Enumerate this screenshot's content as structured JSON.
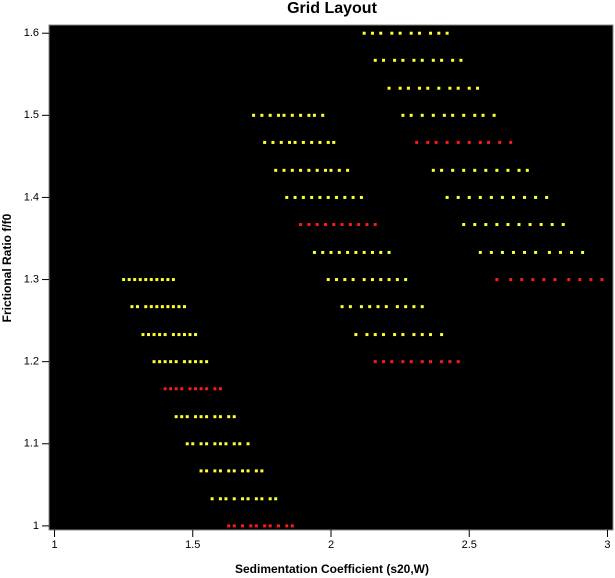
{
  "chart_data": {
    "type": "scatter",
    "title": "Grid Layout",
    "x_label": "Sedimentation Coefficient (s20,W)",
    "y_label": "Frictional Ratio f/f0",
    "xlim": [
      0.98,
      3.02
    ],
    "ylim": [
      0.995,
      1.61
    ],
    "xticks": [
      1,
      1.5,
      2,
      2.5,
      3
    ],
    "yticks": [
      1,
      1.1,
      1.2,
      1.3,
      1.4,
      1.5,
      1.6
    ],
    "background": "#000000",
    "series": [
      {
        "color": "#ff1a1a",
        "y": 1.0,
        "x": [
          1.63,
          1.65,
          1.68,
          1.71,
          1.73,
          1.76,
          1.78,
          1.81,
          1.84,
          1.86
        ]
      },
      {
        "color": "#ffff33",
        "y": 1.033,
        "x": [
          1.57,
          1.6,
          1.62,
          1.65,
          1.68,
          1.7,
          1.73,
          1.75,
          1.78,
          1.8
        ]
      },
      {
        "color": "#ffff33",
        "y": 1.067,
        "x": [
          1.53,
          1.55,
          1.58,
          1.6,
          1.63,
          1.65,
          1.68,
          1.7,
          1.73,
          1.75
        ]
      },
      {
        "color": "#ffff33",
        "y": 1.1,
        "x": [
          1.48,
          1.5,
          1.53,
          1.55,
          1.58,
          1.6,
          1.62,
          1.65,
          1.67,
          1.7
        ]
      },
      {
        "color": "#ffff33",
        "y": 1.133,
        "x": [
          1.44,
          1.46,
          1.48,
          1.51,
          1.53,
          1.55,
          1.58,
          1.6,
          1.63,
          1.65
        ]
      },
      {
        "color": "#ff1a1a",
        "y": 1.167,
        "x": [
          1.4,
          1.42,
          1.44,
          1.46,
          1.49,
          1.51,
          1.53,
          1.55,
          1.58,
          1.6
        ]
      },
      {
        "color": "#ffff33",
        "y": 1.2,
        "x": [
          1.36,
          1.38,
          1.4,
          1.42,
          1.44,
          1.47,
          1.49,
          1.51,
          1.53,
          1.55
        ]
      },
      {
        "color": "#ffff33",
        "y": 1.233,
        "x": [
          1.32,
          1.34,
          1.36,
          1.38,
          1.4,
          1.43,
          1.45,
          1.47,
          1.49,
          1.51
        ]
      },
      {
        "color": "#ffff33",
        "y": 1.267,
        "x": [
          1.28,
          1.3,
          1.33,
          1.35,
          1.37,
          1.39,
          1.41,
          1.43,
          1.45,
          1.47
        ]
      },
      {
        "color": "#ffff33",
        "y": 1.3,
        "x": [
          1.25,
          1.27,
          1.29,
          1.31,
          1.33,
          1.35,
          1.37,
          1.39,
          1.41,
          1.43
        ]
      },
      {
        "color": "#ff1a1a",
        "y": 1.2,
        "x": [
          2.16,
          2.19,
          2.22,
          2.26,
          2.29,
          2.33,
          2.36,
          2.4,
          2.43,
          2.46
        ]
      },
      {
        "color": "#ffff33",
        "y": 1.233,
        "x": [
          2.09,
          2.13,
          2.16,
          2.19,
          2.23,
          2.26,
          2.3,
          2.33,
          2.36,
          2.4
        ]
      },
      {
        "color": "#ffff33",
        "y": 1.267,
        "x": [
          2.04,
          2.07,
          2.11,
          2.14,
          2.17,
          2.2,
          2.24,
          2.27,
          2.3,
          2.33
        ]
      },
      {
        "color": "#ffff33",
        "y": 1.3,
        "x": [
          1.99,
          2.02,
          2.05,
          2.08,
          2.12,
          2.15,
          2.18,
          2.21,
          2.24,
          2.27
        ]
      },
      {
        "color": "#ffff33",
        "y": 1.333,
        "x": [
          1.94,
          1.97,
          2.0,
          2.03,
          2.06,
          2.09,
          2.12,
          2.15,
          2.18,
          2.21
        ]
      },
      {
        "color": "#ff1a1a",
        "y": 1.367,
        "x": [
          1.89,
          1.92,
          1.95,
          1.98,
          2.01,
          2.04,
          2.07,
          2.1,
          2.13,
          2.16
        ]
      },
      {
        "color": "#ffff33",
        "y": 1.4,
        "x": [
          1.84,
          1.87,
          1.9,
          1.93,
          1.96,
          1.99,
          2.02,
          2.05,
          2.08,
          2.11
        ]
      },
      {
        "color": "#ffff33",
        "y": 1.433,
        "x": [
          1.8,
          1.83,
          1.86,
          1.89,
          1.92,
          1.95,
          1.98,
          2.0,
          2.03,
          2.06
        ]
      },
      {
        "color": "#ffff33",
        "y": 1.467,
        "x": [
          1.76,
          1.79,
          1.82,
          1.85,
          1.87,
          1.9,
          1.93,
          1.96,
          1.99,
          2.01
        ]
      },
      {
        "color": "#ffff33",
        "y": 1.5,
        "x": [
          1.72,
          1.75,
          1.78,
          1.81,
          1.83,
          1.86,
          1.89,
          1.92,
          1.94,
          1.97
        ]
      },
      {
        "color": "#ff1a1a",
        "y": 1.3,
        "x": [
          2.6,
          2.65,
          2.69,
          2.73,
          2.77,
          2.81,
          2.86,
          2.9,
          2.94,
          2.98
        ]
      },
      {
        "color": "#ffff33",
        "y": 1.333,
        "x": [
          2.54,
          2.58,
          2.62,
          2.66,
          2.7,
          2.74,
          2.79,
          2.83,
          2.87,
          2.91
        ]
      },
      {
        "color": "#ffff33",
        "y": 1.367,
        "x": [
          2.48,
          2.52,
          2.56,
          2.6,
          2.64,
          2.68,
          2.72,
          2.76,
          2.8,
          2.84
        ]
      },
      {
        "color": "#ffff33",
        "y": 1.4,
        "x": [
          2.42,
          2.46,
          2.5,
          2.54,
          2.58,
          2.62,
          2.66,
          2.7,
          2.74,
          2.78
        ]
      },
      {
        "color": "#ffff33",
        "y": 1.433,
        "x": [
          2.37,
          2.4,
          2.44,
          2.48,
          2.52,
          2.56,
          2.6,
          2.64,
          2.68,
          2.71
        ]
      },
      {
        "color": "#ff1a1a",
        "y": 1.467,
        "x": [
          2.31,
          2.35,
          2.38,
          2.42,
          2.46,
          2.5,
          2.54,
          2.57,
          2.61,
          2.65
        ]
      },
      {
        "color": "#ffff33",
        "y": 1.5,
        "x": [
          2.26,
          2.29,
          2.33,
          2.37,
          2.41,
          2.44,
          2.48,
          2.52,
          2.55,
          2.59
        ]
      },
      {
        "color": "#ffff33",
        "y": 1.533,
        "x": [
          2.21,
          2.25,
          2.28,
          2.32,
          2.35,
          2.39,
          2.43,
          2.46,
          2.5,
          2.53
        ]
      },
      {
        "color": "#ffff33",
        "y": 1.567,
        "x": [
          2.16,
          2.19,
          2.23,
          2.26,
          2.3,
          2.33,
          2.37,
          2.4,
          2.44,
          2.47
        ]
      },
      {
        "color": "#ffff33",
        "y": 1.6,
        "x": [
          2.12,
          2.15,
          2.18,
          2.22,
          2.25,
          2.29,
          2.32,
          2.36,
          2.39,
          2.42
        ]
      }
    ]
  }
}
